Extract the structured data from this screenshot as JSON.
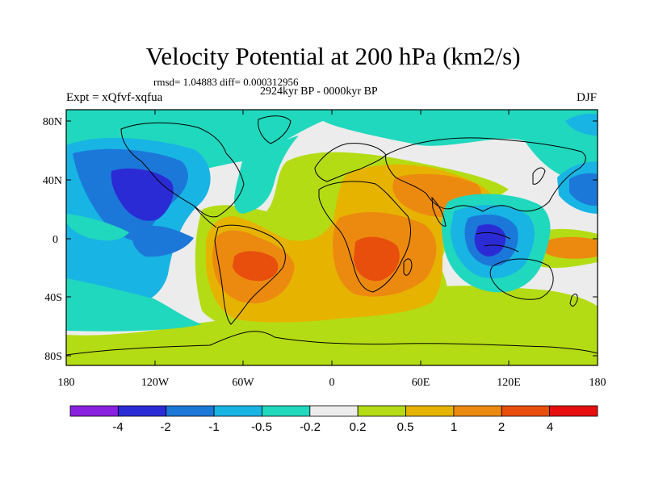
{
  "header": {
    "title": "Velocity Potential at 200 hPa (km2/s)",
    "stats": "rmsd= 1.04883 diff= 0.000312956",
    "period": "2924kyr BP - 0000kyr BP",
    "experiment": "Expt = xQfvf-xqfua",
    "season": "DJF"
  },
  "axes": {
    "y_labels": [
      "80N",
      "40N",
      "0",
      "40S",
      "80S"
    ],
    "x_labels": [
      "180",
      "120W",
      "60W",
      "0",
      "60E",
      "120E",
      "180"
    ]
  },
  "colorbar": {
    "labels": [
      "-4",
      "-2",
      "-1",
      "-0.5",
      "-0.2",
      "0.2",
      "0.5",
      "1",
      "2",
      "4"
    ],
    "colors": [
      "#8a20e0",
      "#2b2bd6",
      "#1c78d8",
      "#18b4e4",
      "#20d8bd",
      "#ececec",
      "#b4dc14",
      "#e6b400",
      "#ec8a10",
      "#e84e0c",
      "#e60e0e"
    ]
  },
  "fields": {
    "background": "#ececec",
    "map_colors": {
      "gray": "#ececec",
      "lime": "#b4dc14",
      "yellow": "#e6b400",
      "orange": "#ec8a10",
      "red": "#e84e0c",
      "cyan": "#20d8bd",
      "lightblue": "#18b4e4",
      "blue": "#1c78d8",
      "darkblue": "#2b2bd6"
    }
  }
}
